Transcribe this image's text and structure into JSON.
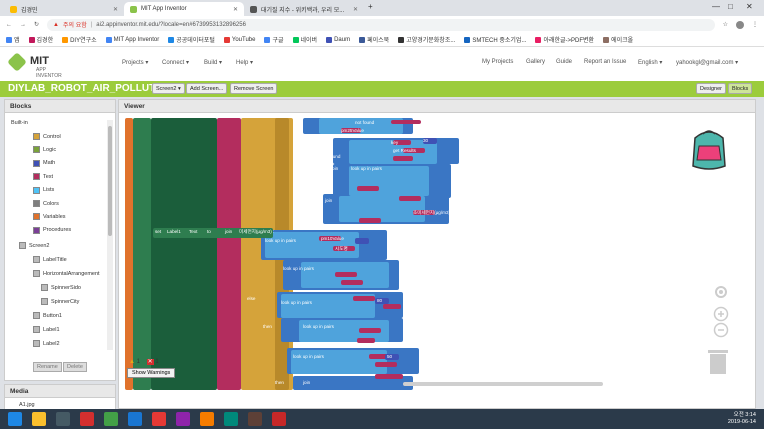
{
  "browser": {
    "tabs": [
      {
        "label": "김경민"
      },
      {
        "label": "MIT App Inventor"
      },
      {
        "label": "대기질 지수 - 위키백과, 우리 모..."
      }
    ],
    "new_tab": "+",
    "window_controls": [
      "—",
      "□",
      "✕"
    ],
    "security_warning": "주의 요함",
    "url": "ai2.appinventor.mit.edu/?locale=en#6739953132896256"
  },
  "bookmarks": [
    {
      "label": "앱",
      "color": "#4285f4"
    },
    {
      "label": "김경한",
      "color": "#c2185b"
    },
    {
      "label": "DIY연구소",
      "color": "#ff9800"
    },
    {
      "label": "MIT App Inventor",
      "color": "#4285f4"
    },
    {
      "label": "공공데이터포털",
      "color": "#1e88e5"
    },
    {
      "label": "YouTube",
      "color": "#e53935"
    },
    {
      "label": "구글",
      "color": "#4285f4"
    },
    {
      "label": "네이버",
      "color": "#03c75a"
    },
    {
      "label": "Daum",
      "color": "#3f51b5"
    },
    {
      "label": "페이스북",
      "color": "#3b5998"
    },
    {
      "label": "고양경기문화창조...",
      "color": "#333333"
    },
    {
      "label": "SMTECH 중소기업...",
      "color": "#1565c0"
    },
    {
      "label": "아래한글->PDF변환",
      "color": "#e91e63"
    },
    {
      "label": "에이크올",
      "color": "#8d6e63"
    }
  ],
  "appinventor": {
    "logo_title": "MIT",
    "logo_sub": "APP INVENTOR",
    "menus": [
      "Projects ▾",
      "Connect ▾",
      "Build ▾",
      "Help ▾"
    ],
    "right_links": [
      "My Projects",
      "Gallery",
      "Guide",
      "Report an Issue",
      "English ▾",
      "yahookgl@gmail.com ▾"
    ],
    "project_title": "DIYLAB_ROBOT_AIR_POLLUTION1",
    "screen_select": "Screen2 ▾",
    "add_screen": "Add Screen...",
    "remove_screen": "Remove Screen",
    "designer": "Designer",
    "blocks": "Blocks"
  },
  "blocks_panel": {
    "title": "Blocks",
    "builtin": "Built-in",
    "builtin_items": [
      {
        "label": "Control",
        "color": "#d5a33a"
      },
      {
        "label": "Logic",
        "color": "#7ba33a"
      },
      {
        "label": "Math",
        "color": "#3f51b5"
      },
      {
        "label": "Text",
        "color": "#b32d5e"
      },
      {
        "label": "Lists",
        "color": "#4fc3f7"
      },
      {
        "label": "Colors",
        "color": "#7f7f7f"
      },
      {
        "label": "Variables",
        "color": "#e0722c"
      },
      {
        "label": "Procedures",
        "color": "#7b3f96"
      }
    ],
    "screen": "Screen2",
    "components": [
      "LabelTitle",
      "HorizontalArrangement",
      "SpinnerSido",
      "SpinnerCity",
      "Button1",
      "Label1",
      "Label2"
    ],
    "rename": "Rename",
    "delete": "Delete"
  },
  "media_panel": {
    "title": "Media",
    "file": "A1.jpg"
  },
  "viewer": {
    "title": "Viewer",
    "warnings_count": "1",
    "errors_count": "1",
    "show_warnings": "Show Warnings",
    "block_texts": {
      "not_found": "not found",
      "else": "else",
      "then": "then",
      "join": "join",
      "key": "key",
      "pairs": "pairs",
      "notFound": "notFound",
      "look_up": "look up in pairs",
      "set_label": "set",
      "label_name": "Label1",
      "text_prop": "Text",
      "to": "to",
      "get_results": "get Results",
      "pm25": "pm25Value",
      "pm10": "pm10Value",
      "sido": "시도명",
      "korean1": "미세먼지(μg/m3) : ",
      "korean2": "초미세먼지(μg/m3) : ",
      "num30": "30",
      "num80": "80",
      "num50": "50"
    }
  },
  "taskbar": {
    "time": "오전 3:14",
    "date": "2019-06-14"
  }
}
